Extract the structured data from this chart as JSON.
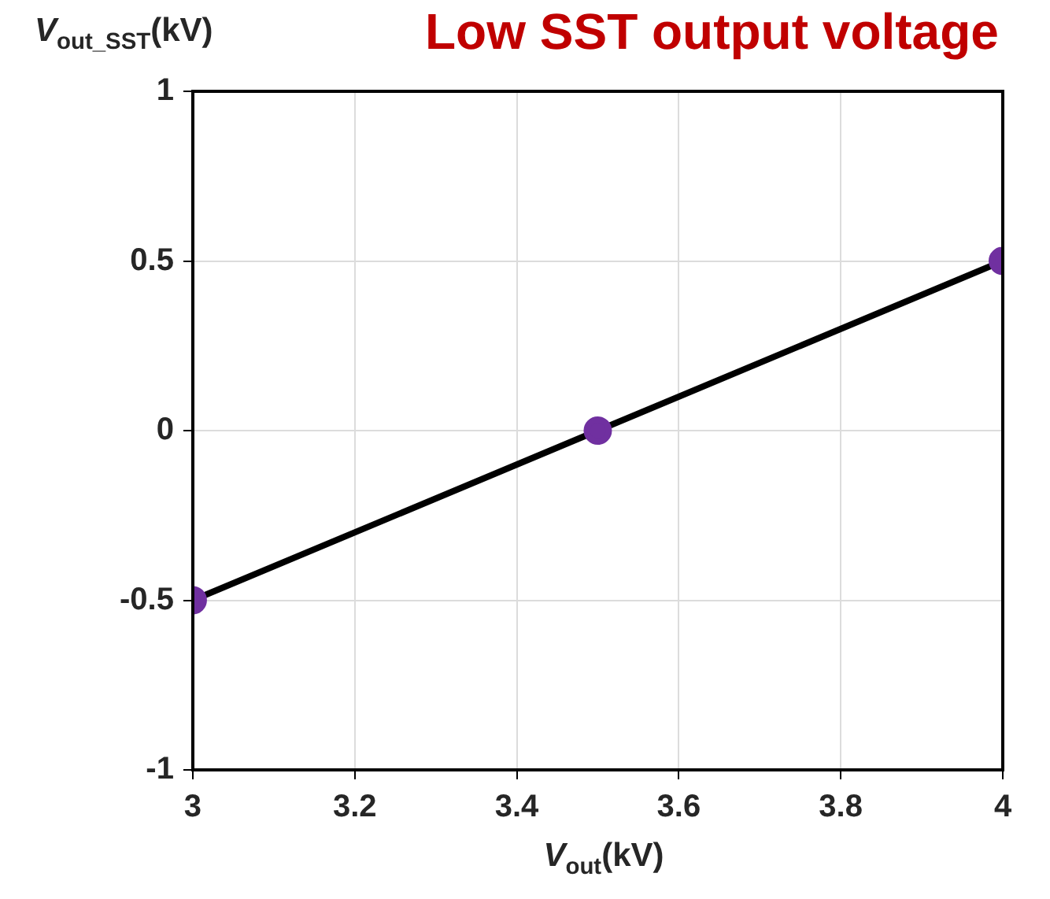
{
  "chart_data": {
    "type": "line",
    "title": "Low SST output voltage",
    "xlabel": "V$_{out}$(kV)",
    "ylabel": "V$_{out_SST}$(kV)",
    "x": [
      3,
      3.5,
      4
    ],
    "series": [
      {
        "color": "#7030a0",
        "values": [
          -0.5,
          0,
          0.5
        ]
      }
    ],
    "xlim": [
      3,
      4
    ],
    "xticks": [
      3,
      3.2,
      3.4,
      3.6,
      3.8,
      4
    ],
    "ylim": [
      -1,
      1
    ],
    "yticks": [
      -1,
      -0.5,
      0,
      0.5,
      1
    ],
    "grid": true,
    "marker": "circle",
    "line_style": "solid",
    "legend": false
  }
}
